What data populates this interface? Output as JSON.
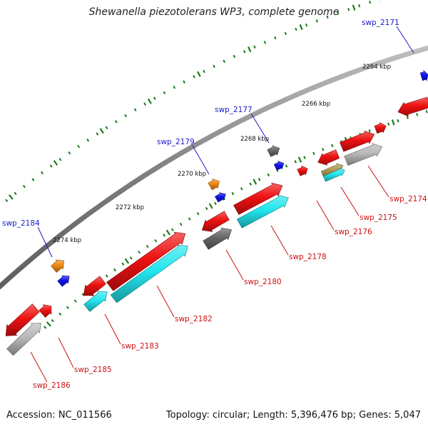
{
  "title": "Shewanella piezotolerans WP3, complete genome",
  "footer": {
    "accession": "Accession: NC_011566",
    "stats": "Topology: circular; Length: 5,396,476 bp; Genes: 5,047"
  },
  "colors": {
    "backbone": "#8c8c8c",
    "tick": "#1a7a1a",
    "label_forward": "#1a1acc",
    "label_reverse": "#cc1111",
    "red": "#ee1111",
    "cyan": "#22e6ee",
    "gray": "#666666",
    "lightgray": "#b8b8b8",
    "orange": "#ee8811",
    "blue": "#1111ee",
    "tan": "#b09a55"
  },
  "scale_labels": [
    "2264 kbp",
    "2266 kbp",
    "2268 kbp",
    "2270 kbp",
    "2272 kbp",
    "2274 kbp"
  ],
  "gene_labels": [
    {
      "name": "swp_2171",
      "strand": "forward"
    },
    {
      "name": "swp_2177",
      "strand": "forward"
    },
    {
      "name": "swp_2179",
      "strand": "forward"
    },
    {
      "name": "swp_2184",
      "strand": "forward"
    },
    {
      "name": "swp_2174",
      "strand": "reverse"
    },
    {
      "name": "swp_2175",
      "strand": "reverse"
    },
    {
      "name": "swp_2176",
      "strand": "reverse"
    },
    {
      "name": "swp_2178",
      "strand": "reverse"
    },
    {
      "name": "swp_2180",
      "strand": "reverse"
    },
    {
      "name": "swp_2182",
      "strand": "reverse"
    },
    {
      "name": "swp_2183",
      "strand": "reverse"
    },
    {
      "name": "swp_2185",
      "strand": "reverse"
    },
    {
      "name": "swp_2186",
      "strand": "reverse"
    }
  ]
}
